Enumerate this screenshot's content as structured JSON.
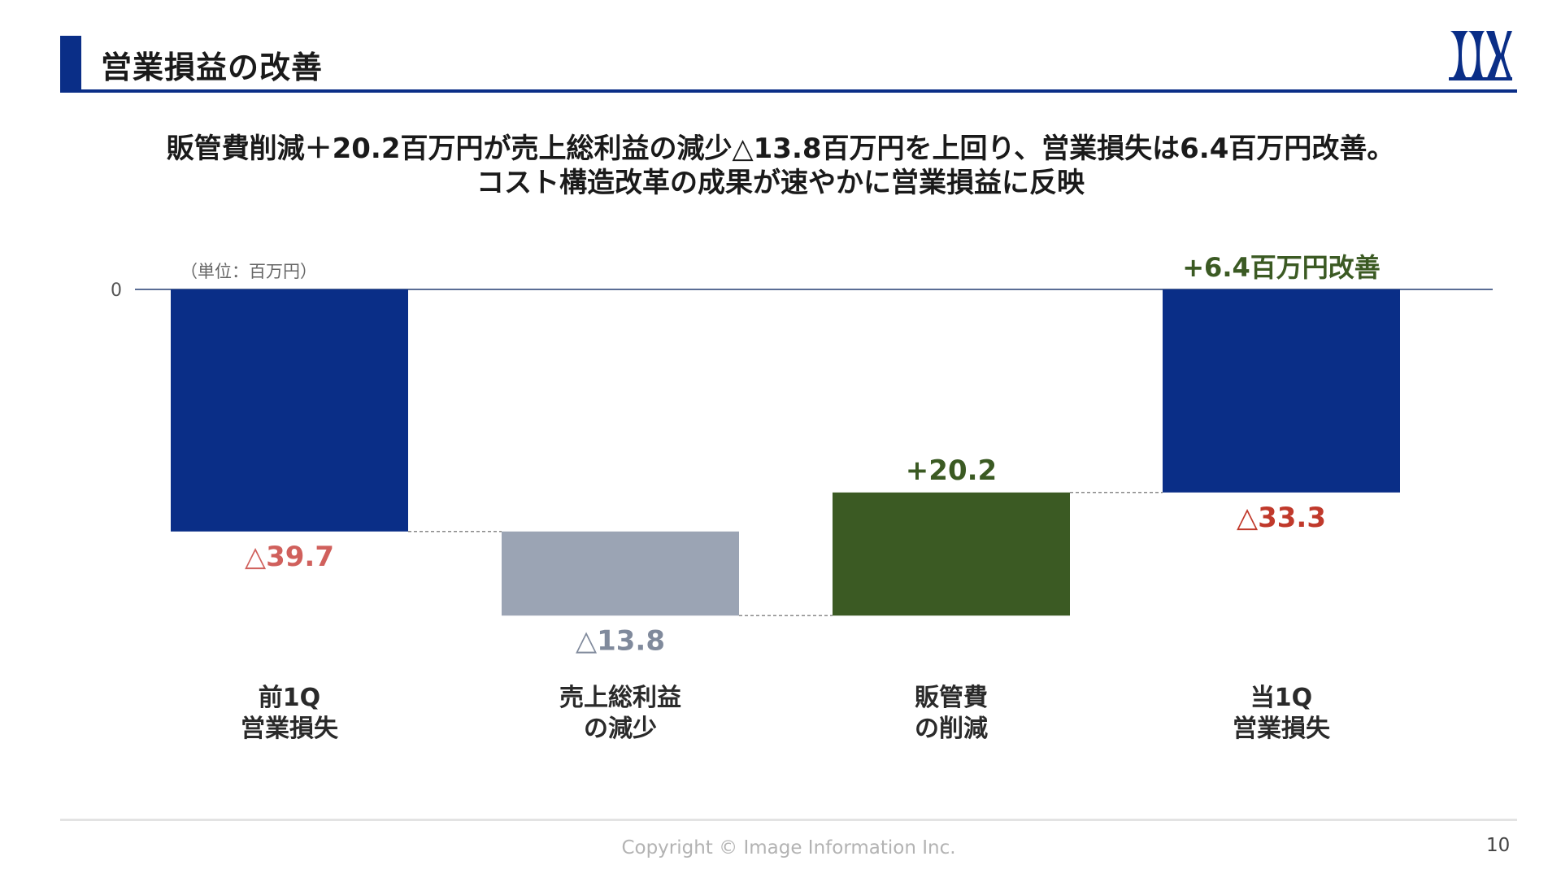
{
  "header": {
    "title": "営業損益の改善"
  },
  "subtitle": {
    "line1": "販管費削減＋20.2百万円が売上総利益の減少△13.8百万円を上回り、営業損失は6.4百万円改善。",
    "line2": "コスト構造改革の成果が速やかに営業損益に反映"
  },
  "chart_data": {
    "type": "bar",
    "variant": "waterfall",
    "unit_label": "（単位：百万円）",
    "y_tick_labels": [
      "0"
    ],
    "ylim": [
      -42,
      0
    ],
    "categories": [
      [
        "前1Q",
        "営業損失"
      ],
      [
        "売上総利益",
        "の減少"
      ],
      [
        "販管費",
        "の削減"
      ],
      [
        "当1Q",
        "営業損失"
      ]
    ],
    "bars": [
      {
        "start": 0,
        "end": -39.7,
        "label": "△39.7",
        "label_position": "below",
        "color": "#0a2e87",
        "label_color": "#d0605c"
      },
      {
        "start": -39.7,
        "end": -53.5,
        "label": "△13.8",
        "label_position": "below",
        "color": "#9ba4b4",
        "label_color": "#808a9c"
      },
      {
        "start": -53.5,
        "end": -33.3,
        "label": "+20.2",
        "label_position": "above",
        "color": "#3b5a23",
        "label_color": "#3b5a23"
      },
      {
        "start": 0,
        "end": -33.3,
        "label": "△33.3",
        "label_position": "below",
        "color": "#0a2e87",
        "label_color": "#c0392b"
      }
    ],
    "annotation": {
      "text": "+6.4百万円改善",
      "color": "#3b5a23"
    },
    "grid": false,
    "legend": "none"
  },
  "colors": {
    "brand": "#0a2e87",
    "baseline": "#5a6d95",
    "connector": "#8a8a8a"
  },
  "footer": {
    "copyright": "Copyright © Image Information Inc.",
    "page_number": "10"
  }
}
